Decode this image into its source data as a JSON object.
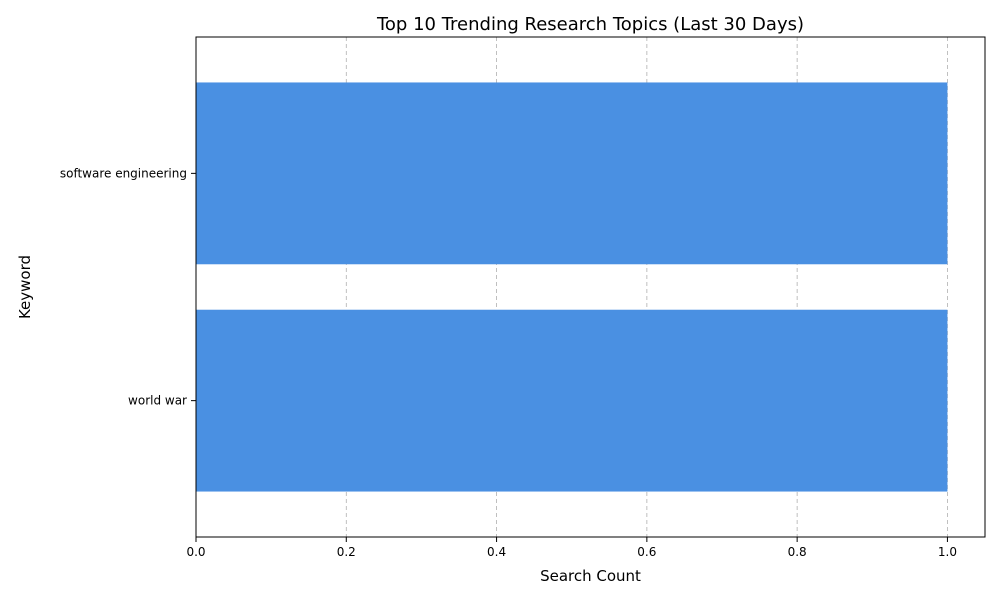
{
  "chart_data": {
    "type": "bar",
    "orientation": "horizontal",
    "title": "Top 10 Trending Research Topics (Last 30 Days)",
    "xlabel": "Search Count",
    "ylabel": "Keyword",
    "categories": [
      "software engineering",
      "world war"
    ],
    "values": [
      1,
      1
    ],
    "xlim": [
      0,
      1.05
    ],
    "xticks": [
      0.0,
      0.2,
      0.4,
      0.6,
      0.8,
      1.0
    ],
    "xtick_labels": [
      "0.0",
      "0.2",
      "0.4",
      "0.6",
      "0.8",
      "1.0"
    ],
    "grid": "x-dashed",
    "bar_color": "#4a90e2"
  }
}
